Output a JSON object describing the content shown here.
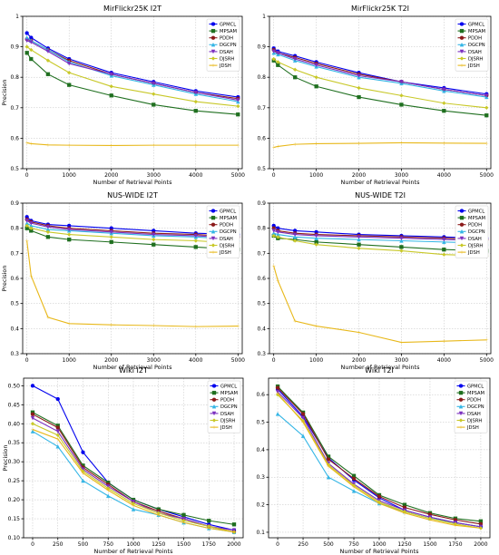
{
  "colors": {
    "GPMCL": "#0000ee",
    "MPSAM": "#1f6f1f",
    "PDDH": "#8b1a1a",
    "DGCPN": "#33b5e5",
    "DSAH": "#7b2fbf",
    "DJSRH": "#c8c828",
    "JDSH": "#e8b81a"
  },
  "chart_data": [
    {
      "type": "line",
      "title": "MirFlickr25K I2T",
      "xlabel": "Number of Retrieval Points",
      "ylabel": "Precision",
      "xlim": [
        -100,
        5100
      ],
      "ylim": [
        0.5,
        1.0
      ],
      "xticks": [
        0,
        1000,
        2000,
        3000,
        4000,
        5000
      ],
      "yticks": [
        0.5,
        0.6,
        0.7,
        0.8,
        0.9,
        1.0
      ],
      "x": [
        0,
        100,
        500,
        1000,
        2000,
        3000,
        4000,
        5000
      ],
      "legend": "top-right",
      "series": [
        {
          "name": "GPMCL",
          "values": [
            0.945,
            0.93,
            0.895,
            0.86,
            0.815,
            0.785,
            0.755,
            0.735
          ]
        },
        {
          "name": "MPSAM",
          "values": [
            0.88,
            0.86,
            0.81,
            0.775,
            0.74,
            0.71,
            0.69,
            0.678
          ]
        },
        {
          "name": "PDDH",
          "values": [
            0.925,
            0.92,
            0.89,
            0.855,
            0.81,
            0.78,
            0.75,
            0.73
          ]
        },
        {
          "name": "DGCPN",
          "values": [
            0.93,
            0.92,
            0.89,
            0.85,
            0.805,
            0.775,
            0.745,
            0.72
          ]
        },
        {
          "name": "DSAH",
          "values": [
            0.92,
            0.915,
            0.885,
            0.845,
            0.81,
            0.78,
            0.75,
            0.725
          ]
        },
        {
          "name": "DJSRH",
          "values": [
            0.9,
            0.89,
            0.855,
            0.815,
            0.77,
            0.745,
            0.72,
            0.705
          ]
        },
        {
          "name": "JDSH",
          "values": [
            0.585,
            0.582,
            0.578,
            0.577,
            0.576,
            0.577,
            0.577,
            0.577
          ]
        }
      ]
    },
    {
      "type": "line",
      "title": "MirFlickr25K T2I",
      "xlabel": "Number of Retrieval Points",
      "ylabel": "",
      "xlim": [
        -100,
        5100
      ],
      "ylim": [
        0.5,
        1.0
      ],
      "xticks": [
        0,
        1000,
        2000,
        3000,
        4000,
        5000
      ],
      "yticks": [
        0.5,
        0.6,
        0.7,
        0.8,
        0.9,
        1.0
      ],
      "x": [
        0,
        100,
        500,
        1000,
        2000,
        3000,
        4000,
        5000
      ],
      "legend": "top-right",
      "series": [
        {
          "name": "GPMCL",
          "values": [
            0.895,
            0.885,
            0.87,
            0.85,
            0.815,
            0.785,
            0.765,
            0.745
          ]
        },
        {
          "name": "MPSAM",
          "values": [
            0.855,
            0.84,
            0.8,
            0.77,
            0.735,
            0.71,
            0.69,
            0.675
          ]
        },
        {
          "name": "PDDH",
          "values": [
            0.89,
            0.88,
            0.865,
            0.845,
            0.81,
            0.785,
            0.76,
            0.74
          ]
        },
        {
          "name": "DGCPN",
          "values": [
            0.88,
            0.875,
            0.855,
            0.835,
            0.8,
            0.78,
            0.755,
            0.735
          ]
        },
        {
          "name": "DSAH",
          "values": [
            0.885,
            0.88,
            0.86,
            0.84,
            0.805,
            0.785,
            0.76,
            0.74
          ]
        },
        {
          "name": "DJSRH",
          "values": [
            0.86,
            0.85,
            0.825,
            0.8,
            0.765,
            0.74,
            0.715,
            0.7
          ]
        },
        {
          "name": "JDSH",
          "values": [
            0.57,
            0.573,
            0.58,
            0.582,
            0.583,
            0.585,
            0.584,
            0.583
          ]
        }
      ]
    },
    {
      "type": "line",
      "title": "NUS-WIDE I2T",
      "xlabel": "Number of Retrieval Points",
      "ylabel": "Precision",
      "xlim": [
        -100,
        5100
      ],
      "ylim": [
        0.3,
        0.9
      ],
      "xticks": [
        0,
        1000,
        2000,
        3000,
        4000,
        5000
      ],
      "yticks": [
        0.3,
        0.4,
        0.5,
        0.6,
        0.7,
        0.8,
        0.9
      ],
      "x": [
        0,
        100,
        500,
        1000,
        2000,
        3000,
        4000,
        5000
      ],
      "legend": "top-right",
      "series": [
        {
          "name": "GPMCL",
          "values": [
            0.845,
            0.83,
            0.815,
            0.81,
            0.8,
            0.79,
            0.78,
            0.775
          ]
        },
        {
          "name": "MPSAM",
          "values": [
            0.8,
            0.79,
            0.765,
            0.755,
            0.745,
            0.735,
            0.725,
            0.715
          ]
        },
        {
          "name": "PDDH",
          "values": [
            0.835,
            0.825,
            0.81,
            0.8,
            0.79,
            0.78,
            0.775,
            0.765
          ]
        },
        {
          "name": "DGCPN",
          "values": [
            0.82,
            0.81,
            0.795,
            0.79,
            0.78,
            0.77,
            0.765,
            0.755
          ]
        },
        {
          "name": "DSAH",
          "values": [
            0.83,
            0.82,
            0.805,
            0.795,
            0.785,
            0.775,
            0.77,
            0.76
          ]
        },
        {
          "name": "DJSRH",
          "values": [
            0.81,
            0.8,
            0.785,
            0.775,
            0.765,
            0.755,
            0.75,
            0.74
          ]
        },
        {
          "name": "JDSH",
          "values": [
            0.75,
            0.61,
            0.445,
            0.42,
            0.415,
            0.412,
            0.408,
            0.41
          ]
        }
      ]
    },
    {
      "type": "line",
      "title": "NUS-WIDE T2I",
      "xlabel": "Number of Retrieval Points",
      "ylabel": "",
      "xlim": [
        -100,
        5100
      ],
      "ylim": [
        0.3,
        0.9
      ],
      "xticks": [
        0,
        1000,
        2000,
        3000,
        4000,
        5000
      ],
      "yticks": [
        0.3,
        0.4,
        0.5,
        0.6,
        0.7,
        0.8,
        0.9
      ],
      "x": [
        0,
        100,
        500,
        1000,
        2000,
        3000,
        4000,
        5000
      ],
      "legend": "top-right",
      "series": [
        {
          "name": "GPMCL",
          "values": [
            0.81,
            0.8,
            0.79,
            0.785,
            0.775,
            0.77,
            0.765,
            0.76
          ]
        },
        {
          "name": "MPSAM",
          "values": [
            0.77,
            0.76,
            0.755,
            0.745,
            0.735,
            0.725,
            0.715,
            0.71
          ]
        },
        {
          "name": "PDDH",
          "values": [
            0.8,
            0.79,
            0.78,
            0.775,
            0.77,
            0.765,
            0.76,
            0.755
          ]
        },
        {
          "name": "DGCPN",
          "values": [
            0.78,
            0.775,
            0.765,
            0.76,
            0.755,
            0.75,
            0.745,
            0.74
          ]
        },
        {
          "name": "DSAH",
          "values": [
            0.79,
            0.785,
            0.775,
            0.77,
            0.765,
            0.76,
            0.755,
            0.75
          ]
        },
        {
          "name": "DJSRH",
          "values": [
            0.77,
            0.765,
            0.75,
            0.735,
            0.72,
            0.71,
            0.695,
            0.69
          ]
        },
        {
          "name": "JDSH",
          "values": [
            0.65,
            0.59,
            0.43,
            0.41,
            0.385,
            0.345,
            0.35,
            0.355
          ]
        }
      ]
    },
    {
      "type": "line",
      "title": "Wiki I2T",
      "xlabel": "Number of Retrieval Points",
      "ylabel": "Precision",
      "xlim": [
        -90,
        2090
      ],
      "ylim": [
        0.1,
        0.52
      ],
      "xticks": [
        0,
        250,
        500,
        750,
        1000,
        1250,
        1500,
        1750,
        2000
      ],
      "yticks": [
        0.1,
        0.15,
        0.2,
        0.25,
        0.3,
        0.35,
        0.4,
        0.45,
        0.5
      ],
      "x": [
        0,
        250,
        500,
        750,
        1000,
        1250,
        1500,
        1750,
        2000
      ],
      "legend": "top-right",
      "series": [
        {
          "name": "GPMCL",
          "values": [
            0.5,
            0.465,
            0.325,
            0.245,
            0.2,
            0.175,
            0.155,
            0.135,
            0.12
          ]
        },
        {
          "name": "MPSAM",
          "values": [
            0.43,
            0.395,
            0.29,
            0.245,
            0.2,
            0.175,
            0.16,
            0.145,
            0.135
          ]
        },
        {
          "name": "PDDH",
          "values": [
            0.425,
            0.39,
            0.285,
            0.24,
            0.195,
            0.17,
            0.15,
            0.13,
            0.115
          ]
        },
        {
          "name": "DGCPN",
          "values": [
            0.38,
            0.34,
            0.25,
            0.21,
            0.175,
            0.16,
            0.14,
            0.125,
            0.115
          ]
        },
        {
          "name": "DSAH",
          "values": [
            0.415,
            0.38,
            0.28,
            0.235,
            0.195,
            0.165,
            0.15,
            0.13,
            0.12
          ]
        },
        {
          "name": "DJSRH",
          "values": [
            0.4,
            0.37,
            0.275,
            0.23,
            0.19,
            0.165,
            0.145,
            0.13,
            0.115
          ]
        },
        {
          "name": "JDSH",
          "values": [
            0.385,
            0.36,
            0.27,
            0.225,
            0.185,
            0.16,
            0.14,
            0.125,
            0.115
          ]
        }
      ]
    },
    {
      "type": "line",
      "title": "Wiki T2I",
      "xlabel": "Number of Retrieval Points",
      "ylabel": "",
      "xlim": [
        -90,
        2090
      ],
      "ylim": [
        0.08,
        0.66
      ],
      "xticks": [
        0,
        250,
        500,
        750,
        1000,
        1250,
        1500,
        1750,
        2000
      ],
      "yticks": [
        0.1,
        0.2,
        0.3,
        0.4,
        0.5,
        0.6
      ],
      "x": [
        0,
        250,
        500,
        750,
        1000,
        1250,
        1500,
        1750,
        2000
      ],
      "legend": "top-right",
      "series": [
        {
          "name": "GPMCL",
          "values": [
            0.62,
            0.52,
            0.37,
            0.29,
            0.225,
            0.18,
            0.155,
            0.135,
            0.12
          ]
        },
        {
          "name": "MPSAM",
          "values": [
            0.63,
            0.535,
            0.375,
            0.305,
            0.235,
            0.2,
            0.17,
            0.15,
            0.14
          ]
        },
        {
          "name": "PDDH",
          "values": [
            0.625,
            0.53,
            0.365,
            0.295,
            0.23,
            0.19,
            0.165,
            0.145,
            0.13
          ]
        },
        {
          "name": "DGCPN",
          "values": [
            0.53,
            0.45,
            0.3,
            0.25,
            0.205,
            0.175,
            0.15,
            0.135,
            0.12
          ]
        },
        {
          "name": "DSAH",
          "values": [
            0.61,
            0.515,
            0.35,
            0.275,
            0.215,
            0.18,
            0.155,
            0.135,
            0.12
          ]
        },
        {
          "name": "DJSRH",
          "values": [
            0.6,
            0.505,
            0.345,
            0.27,
            0.21,
            0.175,
            0.15,
            0.13,
            0.115
          ]
        },
        {
          "name": "JDSH",
          "values": [
            0.605,
            0.5,
            0.34,
            0.265,
            0.205,
            0.17,
            0.145,
            0.125,
            0.115
          ]
        }
      ]
    }
  ]
}
